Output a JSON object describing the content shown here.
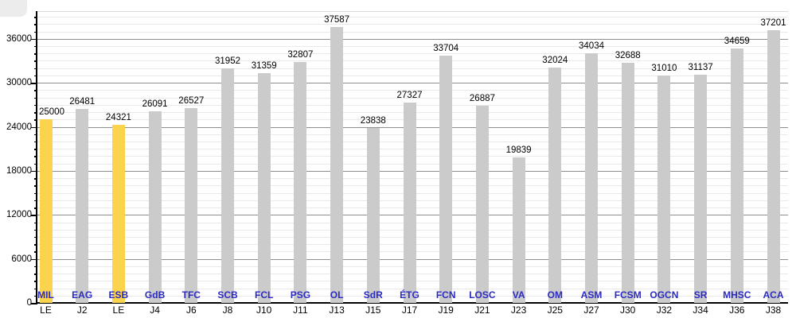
{
  "chart_data": {
    "type": "bar",
    "title": "",
    "xlabel": "",
    "ylabel": "",
    "categories": [
      "MIL",
      "EAG",
      "ESB",
      "GdB",
      "TFC",
      "SCB",
      "FCL",
      "PSG",
      "OL",
      "SdR",
      "ÉTG",
      "FCN",
      "LOSC",
      "VA",
      "OM",
      "ASM",
      "FCSM",
      "OGCN",
      "SR",
      "MHSC",
      "ACA"
    ],
    "x_sub_labels": [
      "LE",
      "J2",
      "LE",
      "J4",
      "J6",
      "J8",
      "J10",
      "J11",
      "J13",
      "J15",
      "J17",
      "J19",
      "J21",
      "J23",
      "J25",
      "J27",
      "J30",
      "J32",
      "J34",
      "J36",
      "J38"
    ],
    "values": [
      25000,
      26481,
      24321,
      26091,
      26527,
      31952,
      31359,
      32807,
      37587,
      23838,
      27327,
      33704,
      26887,
      19839,
      32024,
      34034,
      32688,
      31010,
      31137,
      34659,
      37201
    ],
    "highlight_indices": [
      0,
      2
    ],
    "value_labels_shown": true,
    "ylim": [
      0,
      39750
    ],
    "y_tick_labels": [
      "0",
      "6000",
      "12000",
      "18000",
      "24000",
      "30000",
      "36000"
    ],
    "y_major_tick_step": 6000,
    "y_minor_tick_step": 1000,
    "grid": "horizontal",
    "legend_position": "none",
    "colors": {
      "bar_default": "#CBCBCB",
      "bar_highlight": "#FCD34D",
      "category_label": "#2B2BC2",
      "value_label": "#000000",
      "axis": "#000000",
      "grid_major": "#8E8E8E",
      "grid_minor": "#E9E9E9",
      "corner_artifact": "#ECECEC"
    }
  }
}
